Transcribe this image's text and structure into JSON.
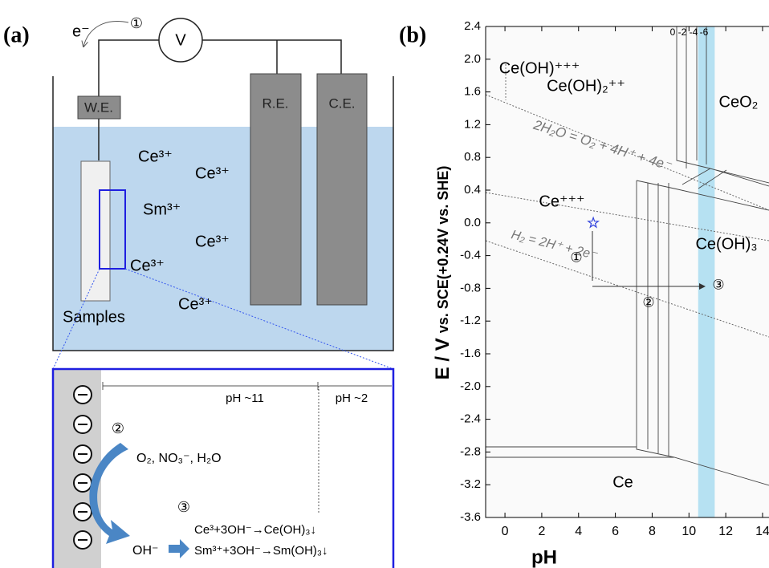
{
  "panel_a": {
    "label": "(a)",
    "electron": "e⁻",
    "step1": "①",
    "meter": "V",
    "electrodes": [
      "W.E.",
      "R.E.",
      "C.E."
    ],
    "ions": [
      "Ce³⁺",
      "Ce³⁺",
      "Sm³⁺",
      "Ce³⁺",
      "Ce³⁺",
      "Ce³⁺"
    ],
    "samples": "Samples",
    "zoom": {
      "ph_left": "pH ~11",
      "ph_right": "pH ~2",
      "step2": "②",
      "reactants": "O₂, NO₃⁻, H₂O",
      "step3": "③",
      "product": "OH⁻",
      "reactions": [
        "Ce³+3OH⁻→Ce(OH)₃↓",
        "Sm³⁺+3OH⁻→Sm(OH)₃↓"
      ]
    }
  },
  "chart_data": {
    "type": "pourbaix",
    "label": "(b)",
    "x_label": "pH",
    "y_label": [
      "E / V",
      "vs. SCE(+0.24V vs. SHE)"
    ],
    "xlim": [
      -1.05,
      14.35
    ],
    "ylim": [
      -3.6,
      2.4
    ],
    "xticks": [
      0,
      2,
      4,
      6,
      8,
      10,
      12,
      14
    ],
    "yticks": [
      2.4,
      {
        "value": 2,
        "label": "2.0"
      },
      1.6,
      1.2,
      0.8,
      0.4,
      {
        "value": 0,
        "label": "0.0"
      },
      -0.4,
      -0.8,
      -1.2,
      -1.6,
      {
        "value": -2,
        "label": "-2.0"
      },
      -2.4,
      -2.8,
      -3.2,
      -3.6
    ],
    "regions": [
      "Ce(OH)⁺⁺⁺",
      "Ce(OH)₂⁺⁺",
      "CeO₂",
      "Ce⁺⁺⁺",
      "Ce(OH)₃",
      "Ce"
    ],
    "concentrations": [
      "0",
      "-2",
      "-4",
      "-6"
    ],
    "water_lines": [
      "2H₂O = O₂ + 4H⁺ + 4e⁻",
      "H₂ = 2H⁺ + 2e⁻"
    ],
    "steps": [
      "①",
      "②",
      "③"
    ],
    "highlight_band": [
      10.5,
      11.4
    ],
    "marker": {
      "x": 4.8,
      "y": 0
    }
  }
}
